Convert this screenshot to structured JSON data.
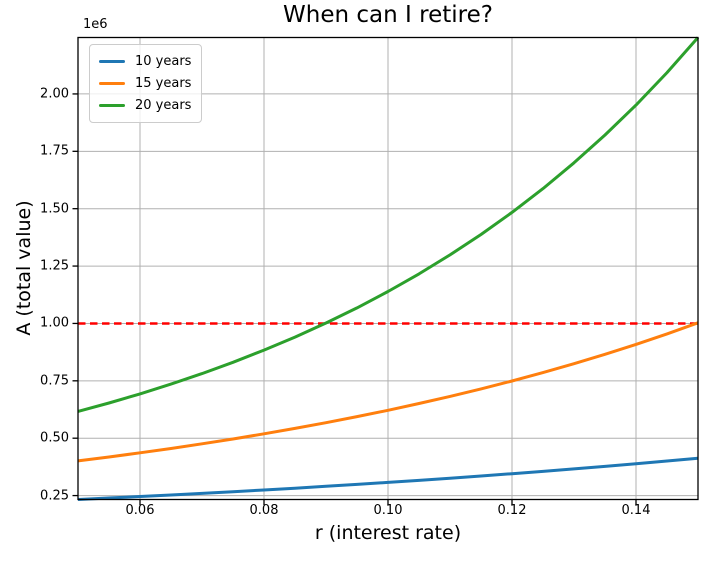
{
  "chart_data": {
    "type": "line",
    "title": "When can I retire?",
    "xlabel": "r (interest rate)",
    "ylabel": "A (total value)",
    "y_offset_label": "1e6",
    "y_unit_multiplier": 1000000,
    "xlim": [
      0.05,
      0.15
    ],
    "ylim": [
      0.2329,
      2.2459
    ],
    "xticks": [
      "0.06",
      "0.08",
      "0.10",
      "0.12",
      "0.14"
    ],
    "yticks": [
      "0.25",
      "0.50",
      "0.75",
      "1.00",
      "1.25",
      "1.50",
      "1.75",
      "2.00"
    ],
    "grid": true,
    "grid_color": "#b0b0b0",
    "legend_position": "upper left",
    "x": [
      0.05,
      0.055,
      0.06,
      0.065,
      0.07,
      0.075,
      0.08,
      0.085,
      0.09,
      0.095,
      0.1,
      0.105,
      0.11,
      0.115,
      0.12,
      0.125,
      0.13,
      0.135,
      0.14,
      0.145,
      0.15
    ],
    "series": [
      {
        "name": "10 years",
        "color": "#1f77b4",
        "values": [
          0.2329,
          0.2393,
          0.2458,
          0.2526,
          0.2596,
          0.2669,
          0.2744,
          0.2822,
          0.2903,
          0.2986,
          0.3073,
          0.3162,
          0.3255,
          0.3351,
          0.3451,
          0.3554,
          0.3661,
          0.3771,
          0.3886,
          0.4005,
          0.4128
        ]
      },
      {
        "name": "15 years",
        "color": "#ff7f0e",
        "values": [
          0.4009,
          0.4181,
          0.4362,
          0.4553,
          0.4754,
          0.4967,
          0.5191,
          0.5427,
          0.5677,
          0.594,
          0.6217,
          0.651,
          0.6821,
          0.7148,
          0.7494,
          0.7859,
          0.8246,
          0.8655,
          0.9087,
          0.9544,
          1.0028
        ]
      },
      {
        "name": "20 years",
        "color": "#2ca02c",
        "values": [
          0.6166,
          0.6535,
          0.6931,
          0.7356,
          0.7814,
          0.8307,
          0.8837,
          0.9406,
          1.0018,
          1.0678,
          1.139,
          1.2157,
          1.2985,
          1.3877,
          1.4839,
          1.5877,
          1.6999,
          1.8209,
          1.9512,
          2.0931,
          2.2459
        ]
      }
    ],
    "goal_line": {
      "value": 1.0,
      "color": "#ff0000",
      "style": "dashed"
    }
  }
}
